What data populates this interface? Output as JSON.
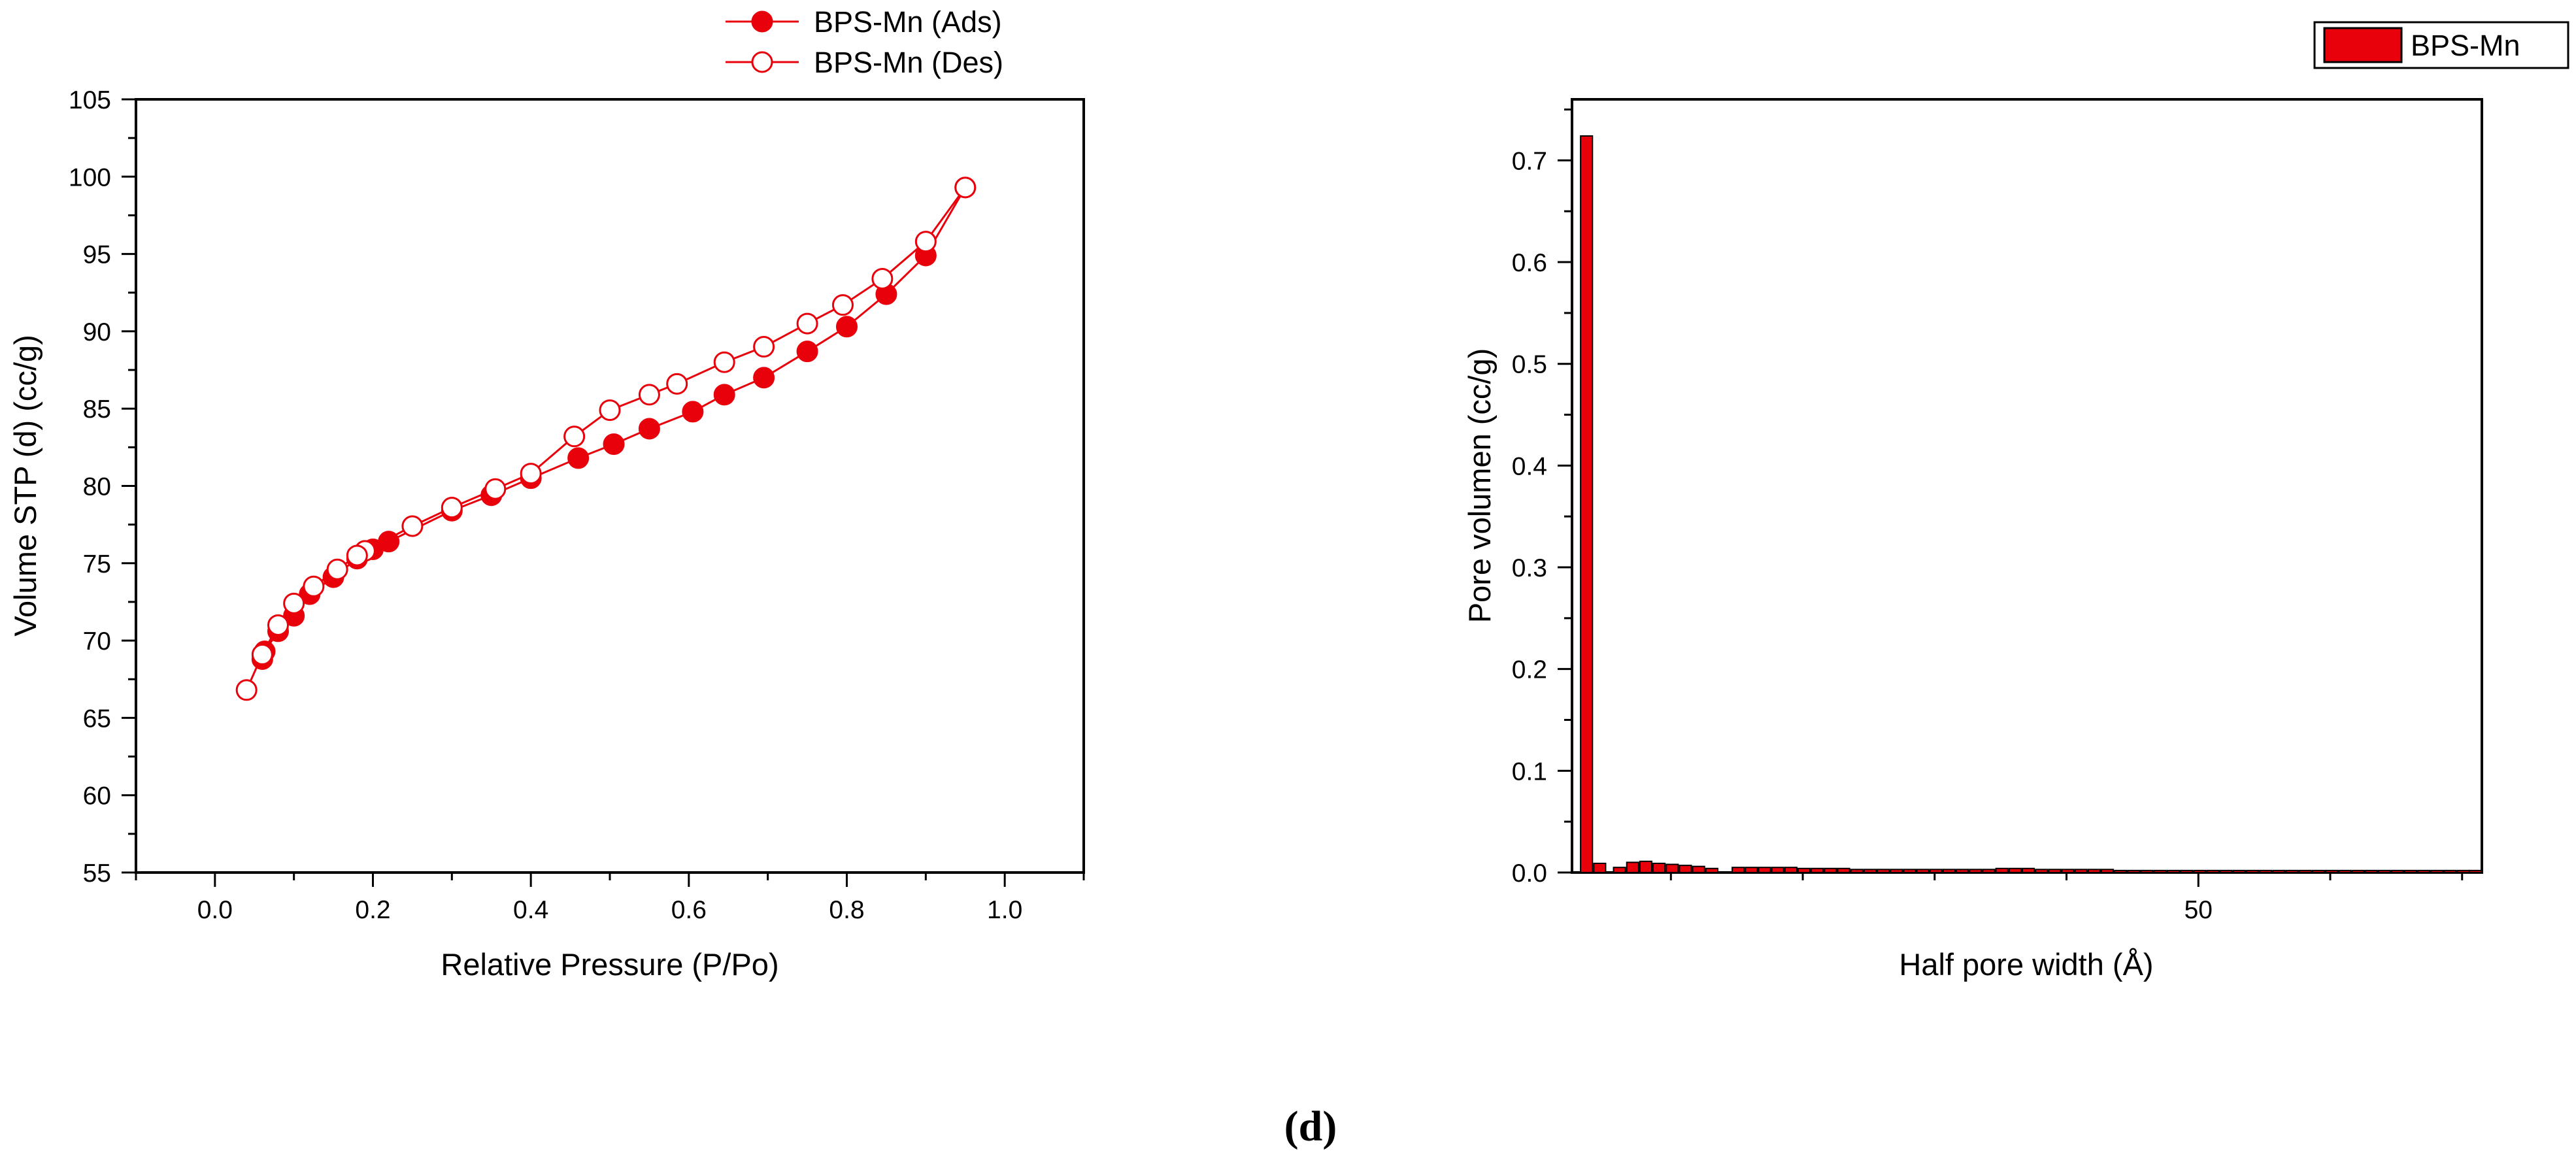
{
  "panel_label": "(d)",
  "chart_data": [
    {
      "type": "line",
      "title": "",
      "xlabel": "Relative Pressure (P/Po)",
      "ylabel": "Volume STP (d) (cc/g)",
      "xlim": [
        -0.1,
        1.1
      ],
      "ylim": [
        55,
        105
      ],
      "xticks": [
        "0.0",
        "0.2",
        "0.4",
        "0.6",
        "0.8",
        "1.0"
      ],
      "yticks": [
        "55",
        "60",
        "65",
        "70",
        "75",
        "80",
        "85",
        "90",
        "95",
        "100",
        "105"
      ],
      "legend_position": "top-center",
      "color": "#e8000b",
      "series": [
        {
          "name": "BPS-Mn (Ads)",
          "marker": "filled-circle",
          "x": [
            0.06,
            0.063,
            0.08,
            0.1,
            0.12,
            0.15,
            0.18,
            0.2,
            0.22,
            0.3,
            0.35,
            0.4,
            0.46,
            0.505,
            0.55,
            0.605,
            0.645,
            0.695,
            0.75,
            0.8,
            0.85,
            0.9,
            0.95
          ],
          "y": [
            68.8,
            69.3,
            70.6,
            71.6,
            73.0,
            74.1,
            75.3,
            75.9,
            76.4,
            78.4,
            79.4,
            80.5,
            81.8,
            82.7,
            83.7,
            84.8,
            85.9,
            87.0,
            88.7,
            90.3,
            92.4,
            94.9,
            99.3
          ]
        },
        {
          "name": "BPS-Mn (Des)",
          "marker": "open-circle",
          "x": [
            0.95,
            0.9,
            0.845,
            0.795,
            0.75,
            0.695,
            0.645,
            0.585,
            0.55,
            0.5,
            0.455,
            0.4,
            0.355,
            0.3,
            0.25,
            0.19,
            0.18,
            0.155,
            0.125,
            0.1,
            0.08,
            0.06,
            0.04
          ],
          "y": [
            99.3,
            95.8,
            93.4,
            91.7,
            90.5,
            89.0,
            88.0,
            86.6,
            85.9,
            84.9,
            83.2,
            80.8,
            79.8,
            78.6,
            77.4,
            75.8,
            75.5,
            74.6,
            73.5,
            72.4,
            71.0,
            69.1,
            66.8
          ]
        }
      ]
    },
    {
      "type": "bar",
      "title": "",
      "xlabel": "Half pore width (Å)",
      "ylabel": "Pore volumen (cc/g)",
      "xlim": [
        2.5,
        71.5
      ],
      "ylim": [
        0,
        0.76
      ],
      "xticks": [
        "50"
      ],
      "yticks": [
        "0.0",
        "0.1",
        "0.2",
        "0.3",
        "0.4",
        "0.5",
        "0.6",
        "0.7"
      ],
      "legend_position": "top-right",
      "bar_width": 0.9,
      "series": [
        {
          "name": "BPS-Mn",
          "color": "#e8000b",
          "x": [
            3.6,
            4.6,
            6.1,
            7.1,
            8.1,
            9.1,
            10.1,
            11.1,
            12.1,
            13.1,
            15.1,
            16.1,
            17.1,
            18.1,
            19.1,
            20.1,
            21.1,
            22.1,
            23.1,
            24.1,
            25.1,
            26.1,
            27.1,
            28.1,
            29.1,
            30.1,
            31.1,
            32.1,
            33.1,
            34.1,
            35.1,
            36.1,
            37.1,
            38.1,
            39.1,
            40.1,
            41.1,
            42.1,
            43.1,
            44.1,
            45.1,
            46.1,
            47.1,
            48.1,
            49.1,
            50.1,
            51.1,
            52.1,
            53.1,
            54.1,
            55.1,
            56.1,
            57.1,
            58.1,
            59.1,
            60.1,
            61.1,
            62.1,
            63.1,
            64.1,
            65.1,
            66.1,
            67.1,
            68.1,
            69.1,
            70.1,
            71.0
          ],
          "values": [
            0.724,
            0.009,
            0.005,
            0.01,
            0.011,
            0.009,
            0.008,
            0.007,
            0.006,
            0.004,
            0.005,
            0.005,
            0.005,
            0.005,
            0.005,
            0.004,
            0.004,
            0.004,
            0.004,
            0.003,
            0.003,
            0.003,
            0.003,
            0.003,
            0.003,
            0.003,
            0.003,
            0.003,
            0.003,
            0.003,
            0.004,
            0.004,
            0.004,
            0.003,
            0.003,
            0.003,
            0.003,
            0.003,
            0.003,
            0.002,
            0.002,
            0.002,
            0.002,
            0.002,
            0.002,
            0.002,
            0.002,
            0.002,
            0.002,
            0.002,
            0.002,
            0.002,
            0.002,
            0.002,
            0.002,
            0.002,
            0.002,
            0.002,
            0.002,
            0.002,
            0.002,
            0.002,
            0.002,
            0.002,
            0.002,
            0.002,
            0.002
          ]
        }
      ]
    }
  ]
}
